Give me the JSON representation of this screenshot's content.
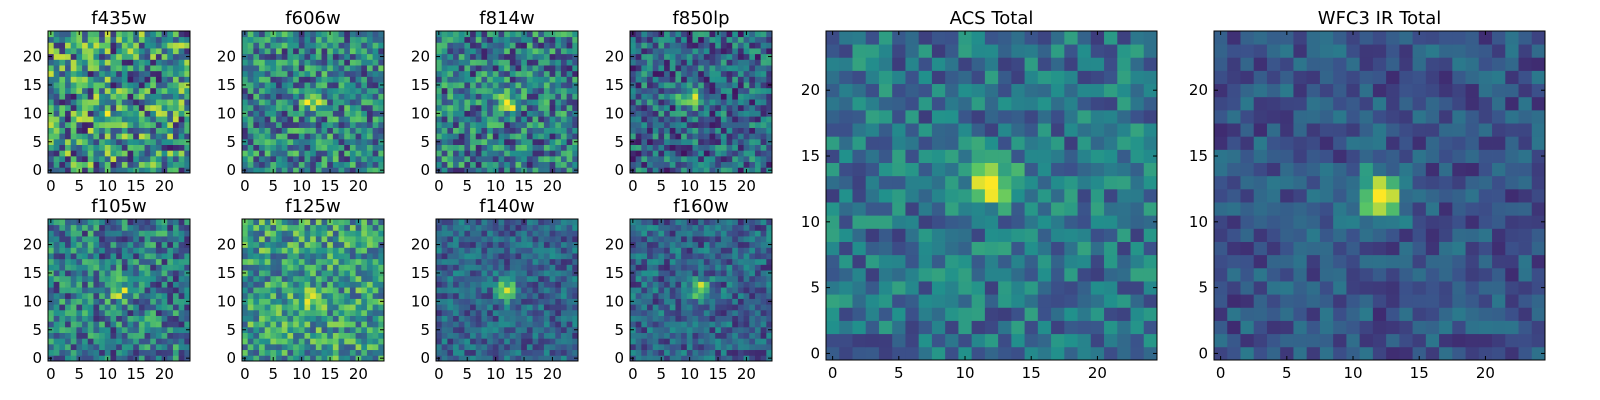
{
  "figure": {
    "colormap": "viridis",
    "colors": [
      "#440154",
      "#3b528b",
      "#21918c",
      "#5ec962",
      "#fde725"
    ],
    "grid": false
  },
  "chart_data": [
    {
      "type": "heatmap",
      "title": "f435w",
      "grid_size": 25,
      "xlim": [
        0,
        24
      ],
      "ylim": [
        0,
        24
      ],
      "xticks": [
        "0",
        "5",
        "10",
        "15",
        "20"
      ],
      "yticks": [
        "0",
        "5",
        "10",
        "15",
        "20"
      ],
      "peak": [
        10,
        8
      ],
      "peak_strength": 0.3,
      "noise": 0.42,
      "base": 0.5,
      "seed": 11
    },
    {
      "type": "heatmap",
      "title": "f606w",
      "grid_size": 25,
      "xlim": [
        0,
        24
      ],
      "ylim": [
        0,
        24
      ],
      "xticks": [
        "0",
        "5",
        "10",
        "15",
        "20"
      ],
      "yticks": [
        "0",
        "5",
        "10",
        "15",
        "20"
      ],
      "peak": [
        12,
        12
      ],
      "peak_strength": 0.45,
      "noise": 0.32,
      "base": 0.45,
      "seed": 23
    },
    {
      "type": "heatmap",
      "title": "f814w",
      "grid_size": 25,
      "xlim": [
        0,
        24
      ],
      "ylim": [
        0,
        24
      ],
      "xticks": [
        "0",
        "5",
        "10",
        "15",
        "20"
      ],
      "yticks": [
        "0",
        "5",
        "10",
        "15",
        "20"
      ],
      "peak": [
        12,
        12
      ],
      "peak_strength": 0.55,
      "noise": 0.32,
      "base": 0.42,
      "seed": 37
    },
    {
      "type": "heatmap",
      "title": "f850lp",
      "grid_size": 25,
      "xlim": [
        0,
        24
      ],
      "ylim": [
        0,
        24
      ],
      "xticks": [
        "0",
        "5",
        "10",
        "15",
        "20"
      ],
      "yticks": [
        "0",
        "5",
        "10",
        "15",
        "20"
      ],
      "peak": [
        10,
        13
      ],
      "peak_strength": 0.55,
      "noise": 0.28,
      "base": 0.33,
      "seed": 41
    },
    {
      "type": "heatmap",
      "title": "f105w",
      "grid_size": 25,
      "xlim": [
        0,
        24
      ],
      "ylim": [
        0,
        24
      ],
      "xticks": [
        "0",
        "5",
        "10",
        "15",
        "20"
      ],
      "yticks": [
        "0",
        "5",
        "10",
        "15",
        "20"
      ],
      "peak": [
        12,
        12
      ],
      "peak_strength": 0.4,
      "noise": 0.3,
      "base": 0.42,
      "seed": 53
    },
    {
      "type": "heatmap",
      "title": "f125w",
      "grid_size": 25,
      "xlim": [
        0,
        24
      ],
      "ylim": [
        0,
        24
      ],
      "xticks": [
        "0",
        "5",
        "10",
        "15",
        "20"
      ],
      "yticks": [
        "0",
        "5",
        "10",
        "15",
        "20"
      ],
      "peak": [
        11,
        10
      ],
      "peak_strength": 0.35,
      "noise": 0.3,
      "base": 0.55,
      "seed": 67
    },
    {
      "type": "heatmap",
      "title": "f140w",
      "grid_size": 25,
      "xlim": [
        0,
        24
      ],
      "ylim": [
        0,
        24
      ],
      "xticks": [
        "0",
        "5",
        "10",
        "15",
        "20"
      ],
      "yticks": [
        "0",
        "5",
        "10",
        "15",
        "20"
      ],
      "peak": [
        12,
        12
      ],
      "peak_strength": 0.55,
      "noise": 0.18,
      "base": 0.32,
      "seed": 71
    },
    {
      "type": "heatmap",
      "title": "f160w",
      "grid_size": 25,
      "xlim": [
        0,
        24
      ],
      "ylim": [
        0,
        24
      ],
      "xticks": [
        "0",
        "5",
        "10",
        "15",
        "20"
      ],
      "yticks": [
        "0",
        "5",
        "10",
        "15",
        "20"
      ],
      "peak": [
        12,
        12
      ],
      "peak_strength": 0.6,
      "noise": 0.2,
      "base": 0.32,
      "seed": 83
    },
    {
      "type": "heatmap",
      "title": "ACS Total",
      "grid_size": 25,
      "xlim": [
        0,
        24
      ],
      "ylim": [
        0,
        24
      ],
      "xticks": [
        "0",
        "5",
        "10",
        "15",
        "20"
      ],
      "yticks": [
        "0",
        "5",
        "10",
        "15",
        "20"
      ],
      "peak": [
        12,
        13
      ],
      "peak_strength": 0.6,
      "noise": 0.2,
      "base": 0.38,
      "seed": 97
    },
    {
      "type": "heatmap",
      "title": "WFC3 IR Total",
      "grid_size": 25,
      "xlim": [
        0,
        24
      ],
      "ylim": [
        0,
        24
      ],
      "xticks": [
        "0",
        "5",
        "10",
        "15",
        "20"
      ],
      "yticks": [
        "0",
        "5",
        "10",
        "15",
        "20"
      ],
      "peak": [
        12,
        12
      ],
      "peak_strength": 0.75,
      "noise": 0.14,
      "base": 0.27,
      "seed": 101
    }
  ]
}
